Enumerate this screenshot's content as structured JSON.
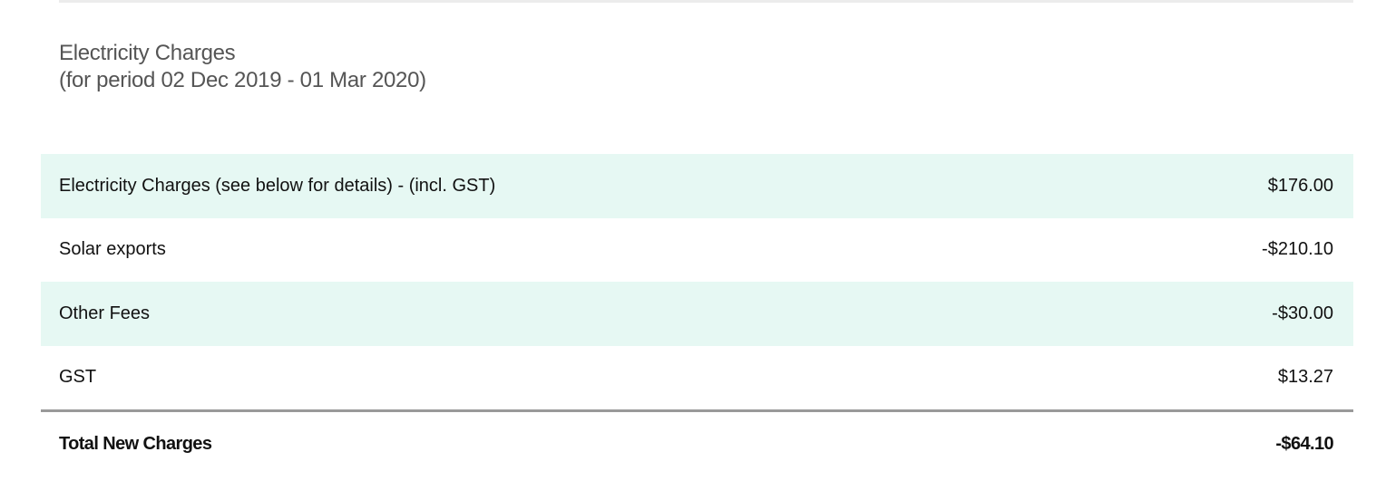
{
  "section": {
    "title": "Electricity Charges",
    "period": "(for period 02 Dec 2019 - 01 Mar 2020)"
  },
  "rows": [
    {
      "label": "Electricity Charges (see below for details) - (incl. GST)",
      "amount": "$176.00"
    },
    {
      "label": "Solar exports",
      "amount": "-$210.10"
    },
    {
      "label": "Other Fees",
      "amount": "-$30.00"
    },
    {
      "label": "GST",
      "amount": "$13.27"
    }
  ],
  "total": {
    "label": "Total New Charges",
    "amount": "-$64.10"
  },
  "colors": {
    "row_shade": "#e6f8f3",
    "title": "#555555",
    "divider": "#999999"
  }
}
